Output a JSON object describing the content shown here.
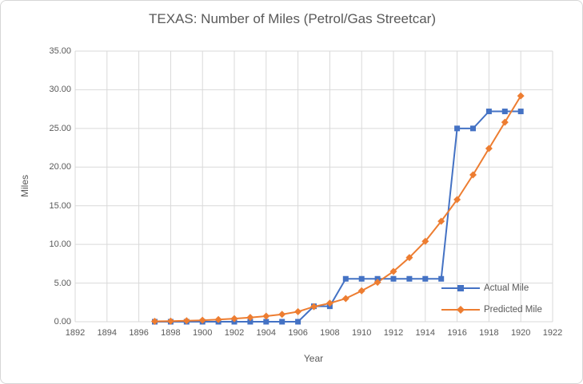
{
  "chart_data": {
    "type": "line",
    "title": "TEXAS: Number of Miles (Petrol/Gas Streetcar)",
    "xlabel": "Year",
    "ylabel": "Miles",
    "xlim": [
      1892,
      1922
    ],
    "ylim": [
      0,
      35
    ],
    "x_ticks": [
      1892,
      1894,
      1896,
      1898,
      1900,
      1902,
      1904,
      1906,
      1908,
      1910,
      1912,
      1914,
      1916,
      1918,
      1920,
      1922
    ],
    "y_ticks": [
      0,
      5,
      10,
      15,
      20,
      25,
      30,
      35
    ],
    "y_tick_labels": [
      "0.00",
      "5.00",
      "10.00",
      "15.00",
      "20.00",
      "25.00",
      "30.00",
      "35.00"
    ],
    "grid": true,
    "legend_position": "inside bottom-right",
    "x": [
      1897,
      1898,
      1899,
      1900,
      1901,
      1902,
      1903,
      1904,
      1905,
      1906,
      1907,
      1908,
      1909,
      1910,
      1911,
      1912,
      1913,
      1914,
      1915,
      1916,
      1917,
      1918,
      1919,
      1920
    ],
    "series": [
      {
        "name": "Actual Mile",
        "color": "#4472C4",
        "marker": "square",
        "values": [
          0,
          0,
          0,
          0,
          0,
          0,
          0,
          0,
          0,
          0,
          2.0,
          2.0,
          5.55,
          5.55,
          5.55,
          5.55,
          5.55,
          5.55,
          5.55,
          25.0,
          25.0,
          27.2,
          27.2,
          27.2
        ]
      },
      {
        "name": "Predicted Mile",
        "color": "#ED7D31",
        "marker": "diamond",
        "values": [
          0.05,
          0.08,
          0.13,
          0.19,
          0.28,
          0.4,
          0.55,
          0.72,
          0.95,
          1.3,
          1.95,
          2.4,
          3.0,
          4.0,
          5.1,
          6.5,
          8.3,
          10.4,
          13.0,
          15.8,
          19.0,
          22.4,
          25.8,
          29.2
        ]
      }
    ]
  },
  "colors": {
    "gridline": "#D9D9D9",
    "text": "#595959",
    "background": "#FFFFFF",
    "outer_border": "#D6D6D6"
  }
}
